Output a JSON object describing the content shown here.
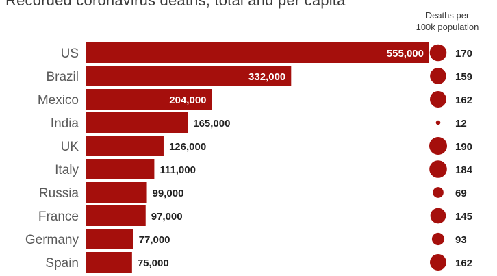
{
  "title": "Recorded coronavirus deaths, total and per capita",
  "per_capita_header": [
    "Deaths per",
    "100k population"
  ],
  "colors": {
    "bar": "#a50f0c",
    "bar_text_inside": "#ffffff",
    "bar_text_outside": "#222222",
    "dot": "#a50f0c"
  },
  "chart_data": {
    "type": "bar",
    "orientation": "horizontal",
    "title": "Recorded coronavirus deaths, total and per capita",
    "categories": [
      "US",
      "Brazil",
      "Mexico",
      "India",
      "UK",
      "Italy",
      "Russia",
      "France",
      "Germany",
      "Spain"
    ],
    "series": [
      {
        "name": "",
        "values": [
          555000,
          332000,
          204000,
          165000,
          126000,
          111000,
          99000,
          97000,
          77000,
          75000
        ],
        "labels": [
          "555,000",
          "332,000",
          "204,000",
          "165,000",
          "126,000",
          "111,000",
          "99,000",
          "97,000",
          "77,000",
          "75,000"
        ]
      },
      {
        "name": "Deaths per 100k population",
        "values": [
          170,
          159,
          162,
          12,
          190,
          184,
          69,
          145,
          93,
          162
        ],
        "display": "proportional circles"
      }
    ],
    "xlim": [
      0,
      555000
    ],
    "grid": false,
    "legend": "none"
  }
}
